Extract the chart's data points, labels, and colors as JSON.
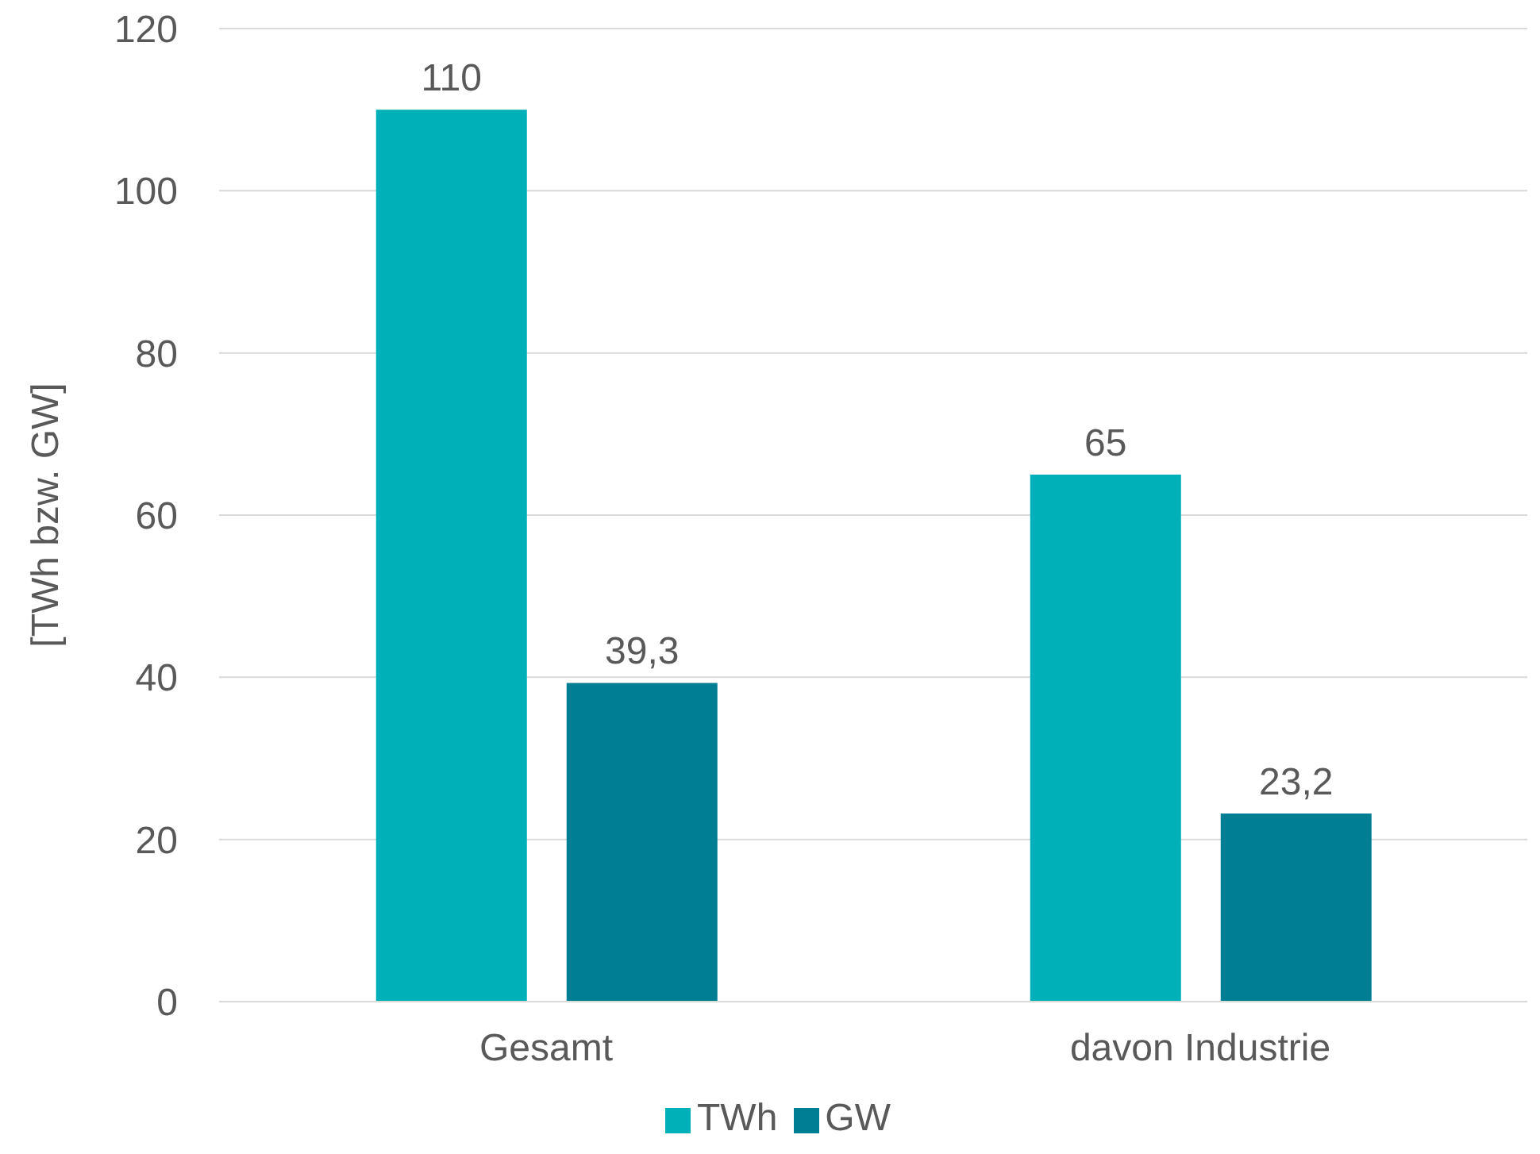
{
  "chart_data": {
    "type": "bar",
    "ylabel": "[TWh bzw. GW]",
    "categories": [
      "Gesamt",
      "davon Industrie"
    ],
    "series": [
      {
        "name": "TWh",
        "color": "#00b0b9",
        "values": [
          110,
          65
        ],
        "value_labels": [
          "110",
          "65"
        ]
      },
      {
        "name": "GW",
        "color": "#007e94",
        "values": [
          39.3,
          23.2
        ],
        "value_labels": [
          "39,3",
          "23,2"
        ]
      }
    ],
    "ylim": [
      0,
      120
    ],
    "yticks": [
      0,
      20,
      40,
      60,
      80,
      100,
      120
    ],
    "grid": "y",
    "legend": "bottom"
  }
}
